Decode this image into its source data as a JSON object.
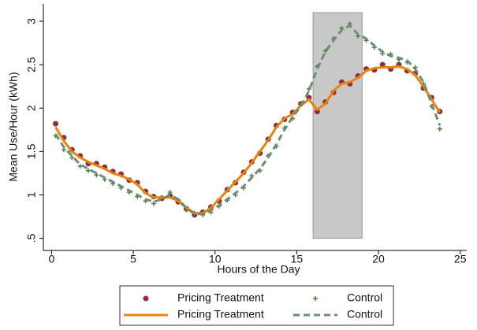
{
  "chart_data": {
    "type": "scatter",
    "x_label": "Hours of the Day",
    "y_label": "Mean Use/Hour (kWh)",
    "xlim": [
      -0.5,
      25.4
    ],
    "ylim": [
      0.36,
      3.2
    ],
    "xticks": [
      0,
      5,
      10,
      15,
      20,
      25
    ],
    "yticks": [
      {
        "value": 0.5,
        "label": ".5"
      },
      1,
      {
        "value": 1.5,
        "label": "1.5"
      },
      2,
      {
        "value": 2.5,
        "label": "2.5"
      },
      3
    ],
    "shade": {
      "x": [
        16,
        19
      ],
      "y": [
        0.5,
        3.1
      ],
      "color": "#c8c8c8"
    },
    "legend": "bottom",
    "x": [
      0.25,
      0.75,
      1.25,
      1.75,
      2.25,
      2.75,
      3.25,
      3.75,
      4.25,
      4.75,
      5.25,
      5.75,
      6.25,
      6.75,
      7.25,
      7.75,
      8.25,
      8.75,
      9.25,
      9.75,
      10.25,
      10.75,
      11.25,
      11.75,
      12.25,
      12.75,
      13.25,
      13.75,
      14.25,
      14.75,
      15.25,
      15.75,
      16.25,
      16.75,
      17.25,
      17.75,
      18.25,
      18.75,
      19.25,
      19.75,
      20.25,
      20.75,
      21.25,
      21.75,
      22.25,
      22.75,
      23.25,
      23.75
    ],
    "series": [
      {
        "name": "Pricing Treatment",
        "kind": "dot",
        "color": "#8e2f3c",
        "values": [
          1.82,
          1.66,
          1.52,
          1.45,
          1.36,
          1.36,
          1.32,
          1.27,
          1.24,
          1.17,
          1.14,
          1.04,
          0.98,
          0.96,
          0.99,
          0.92,
          0.84,
          0.77,
          0.8,
          0.86,
          0.93,
          1.06,
          1.14,
          1.26,
          1.38,
          1.48,
          1.64,
          1.8,
          1.87,
          1.95,
          2.05,
          2.12,
          1.96,
          2.07,
          2.18,
          2.3,
          2.28,
          2.37,
          2.45,
          2.44,
          2.5,
          2.45,
          2.5,
          2.43,
          2.4,
          2.23,
          2.12,
          1.96
        ]
      },
      {
        "name": "Control",
        "kind": "plus",
        "color": "#4f7f33",
        "values": [
          1.68,
          1.52,
          1.43,
          1.33,
          1.28,
          1.23,
          1.18,
          1.13,
          1.08,
          1.03,
          0.98,
          0.93,
          0.9,
          0.97,
          1.03,
          0.94,
          0.83,
          0.79,
          0.77,
          0.8,
          0.87,
          0.94,
          1.0,
          1.08,
          1.22,
          1.28,
          1.45,
          1.56,
          1.77,
          1.88,
          2.05,
          2.22,
          2.48,
          2.66,
          2.8,
          2.92,
          2.97,
          2.83,
          2.78,
          2.7,
          2.63,
          2.62,
          2.56,
          2.53,
          2.47,
          2.28,
          2.02,
          1.76
        ]
      },
      {
        "name": "Pricing Treatment",
        "kind": "line",
        "color": "#e8830c",
        "values": [
          1.78,
          1.62,
          1.5,
          1.43,
          1.38,
          1.34,
          1.3,
          1.25,
          1.22,
          1.18,
          1.12,
          1.02,
          0.97,
          0.97,
          0.97,
          0.93,
          0.85,
          0.79,
          0.79,
          0.85,
          0.95,
          1.05,
          1.15,
          1.25,
          1.37,
          1.5,
          1.63,
          1.78,
          1.88,
          1.93,
          2.03,
          2.1,
          1.98,
          2.05,
          2.2,
          2.28,
          2.3,
          2.35,
          2.43,
          2.46,
          2.47,
          2.47,
          2.48,
          2.45,
          2.38,
          2.25,
          2.1,
          1.95
        ]
      },
      {
        "name": "Control",
        "kind": "dash",
        "color": "#6b8c7a",
        "values": [
          1.7,
          1.55,
          1.45,
          1.35,
          1.3,
          1.25,
          1.2,
          1.15,
          1.1,
          1.05,
          1.0,
          0.95,
          0.92,
          0.95,
          1.0,
          0.95,
          0.85,
          0.78,
          0.78,
          0.82,
          0.88,
          0.95,
          1.02,
          1.1,
          1.2,
          1.3,
          1.43,
          1.58,
          1.75,
          1.9,
          2.02,
          2.2,
          2.45,
          2.65,
          2.78,
          2.9,
          2.95,
          2.85,
          2.8,
          2.72,
          2.65,
          2.6,
          2.58,
          2.55,
          2.45,
          2.3,
          2.05,
          1.8
        ]
      }
    ]
  }
}
